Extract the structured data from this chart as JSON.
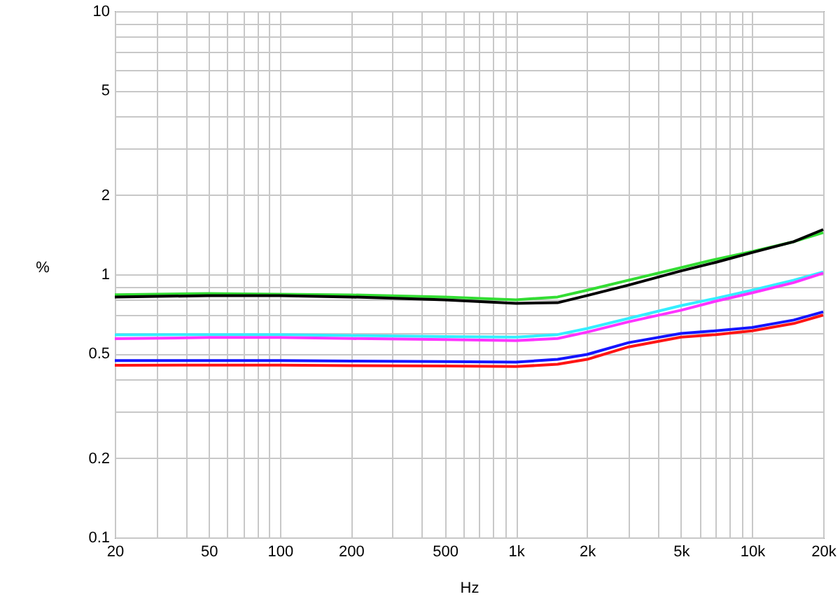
{
  "chart_data": {
    "type": "line",
    "xlabel": "Hz",
    "ylabel": "%",
    "log": "xy",
    "grid": true,
    "x": [
      20,
      50,
      100,
      200,
      500,
      1000,
      1500,
      2000,
      3000,
      5000,
      7000,
      10000,
      15000,
      20000
    ],
    "xlim": [
      20,
      20000
    ],
    "ylim": [
      0.1,
      10
    ],
    "xticks": [
      20,
      {
        "value": 30,
        "label": null
      },
      {
        "value": 40,
        "label": null
      },
      50,
      {
        "value": 60,
        "label": null
      },
      {
        "value": 70,
        "label": null
      },
      {
        "value": 80,
        "label": null
      },
      {
        "value": 90,
        "label": null
      },
      100,
      200,
      {
        "value": 300,
        "label": null
      },
      {
        "value": 400,
        "label": null
      },
      500,
      {
        "value": 600,
        "label": null
      },
      {
        "value": 700,
        "label": null
      },
      {
        "value": 800,
        "label": null
      },
      {
        "value": 900,
        "label": null
      },
      {
        "value": 1000,
        "label": "1k"
      },
      {
        "value": 2000,
        "label": "2k"
      },
      {
        "value": 3000,
        "label": null
      },
      {
        "value": 4000,
        "label": null
      },
      {
        "value": 5000,
        "label": "5k"
      },
      {
        "value": 6000,
        "label": null
      },
      {
        "value": 7000,
        "label": null
      },
      {
        "value": 8000,
        "label": null
      },
      {
        "value": 9000,
        "label": null
      },
      {
        "value": 10000,
        "label": "10k"
      },
      {
        "value": 20000,
        "label": "20k"
      }
    ],
    "yticks": [
      0.1,
      0.2,
      {
        "value": 0.3,
        "label": null
      },
      {
        "value": 0.4,
        "label": null
      },
      0.5,
      {
        "value": 0.6,
        "label": null
      },
      {
        "value": 0.7,
        "label": null
      },
      {
        "value": 0.8,
        "label": null
      },
      {
        "value": 0.9,
        "label": null
      },
      1,
      2,
      {
        "value": 3,
        "label": null
      },
      {
        "value": 4,
        "label": null
      },
      5,
      {
        "value": 6,
        "label": null
      },
      {
        "value": 7,
        "label": null
      },
      {
        "value": 8,
        "label": null
      },
      {
        "value": 9,
        "label": null
      },
      10
    ],
    "series": [
      {
        "color": "#33dd33",
        "values": [
          0.836,
          0.845,
          0.84,
          0.835,
          0.82,
          0.8,
          0.82,
          0.87,
          0.95,
          1.06,
          1.14,
          1.22,
          1.33,
          1.44
        ]
      },
      {
        "color": "#000000",
        "values": [
          0.819,
          0.83,
          0.83,
          0.82,
          0.8,
          0.776,
          0.78,
          0.83,
          0.91,
          1.03,
          1.11,
          1.21,
          1.33,
          1.48
        ]
      },
      {
        "color": "#33eeff",
        "values": [
          0.589,
          0.59,
          0.59,
          0.585,
          0.58,
          0.577,
          0.59,
          0.622,
          0.68,
          0.76,
          0.81,
          0.87,
          0.95,
          1.02
        ]
      },
      {
        "color": "#ff33ff",
        "values": [
          0.569,
          0.575,
          0.575,
          0.57,
          0.565,
          0.56,
          0.57,
          0.603,
          0.66,
          0.73,
          0.79,
          0.85,
          0.93,
          1.01
        ]
      },
      {
        "color": "#1515ff",
        "values": [
          0.47,
          0.47,
          0.47,
          0.468,
          0.466,
          0.464,
          0.475,
          0.496,
          0.55,
          0.596,
          0.61,
          0.628,
          0.67,
          0.72
        ]
      },
      {
        "color": "#ff1515",
        "values": [
          0.451,
          0.452,
          0.452,
          0.45,
          0.448,
          0.446,
          0.455,
          0.475,
          0.53,
          0.577,
          0.59,
          0.61,
          0.65,
          0.7
        ]
      }
    ]
  }
}
